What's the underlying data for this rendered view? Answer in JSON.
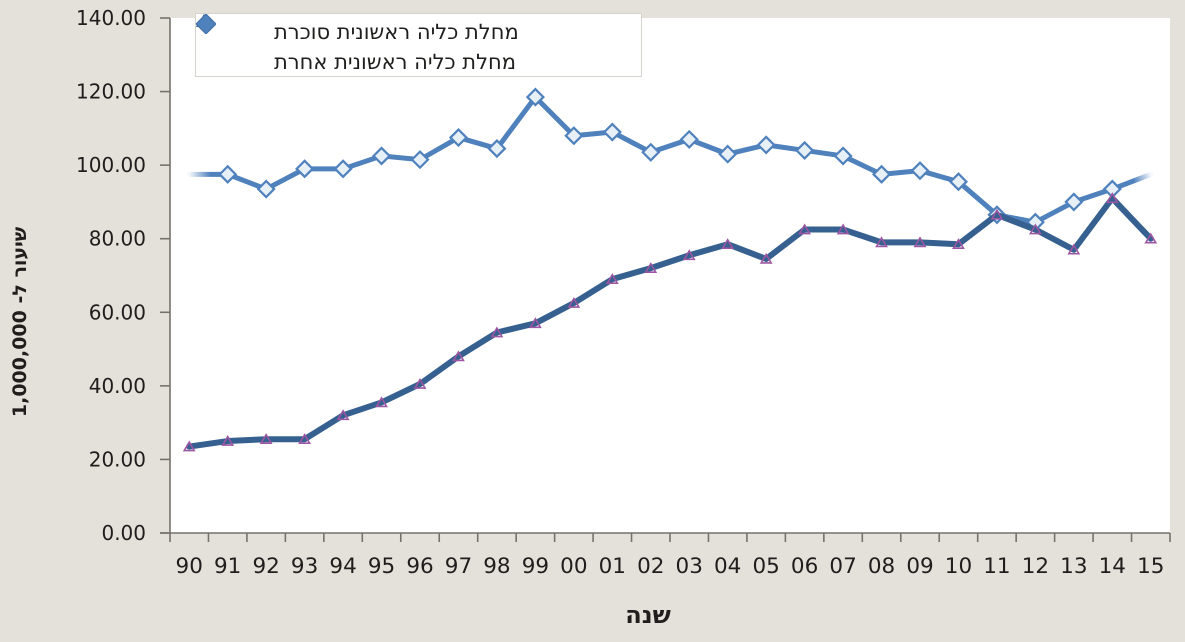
{
  "colors": {
    "background": "#E4E1DB",
    "plot_background": "#FFFFFF",
    "axis": "#75726C",
    "text": "#1F1E1C",
    "legend_border": "#D6D4CE"
  },
  "chart_data": {
    "type": "line",
    "title": "",
    "xlabel": "שנה",
    "ylabel": "שיעור ל- 1,000,000",
    "ylim": [
      0,
      140
    ],
    "y_tick_step": 20,
    "y_ticks": [
      "140.00",
      "120.00",
      "100.00",
      "80.00",
      "60.00",
      "40.00",
      "20.00",
      "0.00"
    ],
    "x_categories": [
      "90",
      "91",
      "92",
      "93",
      "94",
      "95",
      "96",
      "97",
      "98",
      "99",
      "00",
      "01",
      "02",
      "03",
      "04",
      "05",
      "06",
      "07",
      "08",
      "09",
      "10",
      "11",
      "12",
      "13",
      "14",
      "15"
    ],
    "grid": false,
    "legend_position": "top-left-inside",
    "series": [
      {
        "name": "מחלת כליה ראשונית סוכרת",
        "marker": "triangle",
        "color": "#36608F",
        "marker_color": "#9C56A3",
        "line_width": 6,
        "fade_ends": false,
        "values": [
          23.5,
          25,
          25.5,
          25.5,
          32,
          35.5,
          40.5,
          48,
          54.5,
          57,
          62.5,
          69,
          72,
          75.5,
          78.5,
          74.5,
          82.5,
          82.5,
          79,
          79,
          78.5,
          86.5,
          82.5,
          77,
          91,
          80
        ]
      },
      {
        "name": "מחלת כליה ראשונית אחרת",
        "marker": "diamond",
        "color": "#4F81BD",
        "marker_fill": "#E7EFF7",
        "line_width": 5,
        "fade_ends": true,
        "values": [
          97.5,
          97.5,
          93.5,
          99,
          99,
          102.5,
          101.5,
          107.5,
          104.5,
          118.5,
          108,
          109,
          103.5,
          107,
          103,
          105.5,
          104,
          102.5,
          97.5,
          98.5,
          95.5,
          86.5,
          84.5,
          90,
          93.5,
          97.5
        ]
      }
    ]
  }
}
